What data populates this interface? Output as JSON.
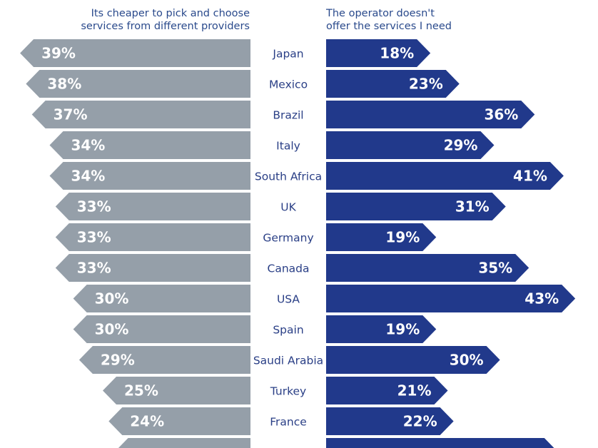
{
  "headers": {
    "left": [
      "Its cheaper to pick and choose",
      "services from different providers"
    ],
    "right": [
      "The operator doesn't",
      "offer the services I need"
    ]
  },
  "colors": {
    "left_bar": "#959fa9",
    "right_bar": "#21398b",
    "left_header_text": "#2a4a8c",
    "right_header_text": "#2a4a8c",
    "country_text": "#2a3f86",
    "bar_label": "#ffffff",
    "background": "#ffffff"
  },
  "chart_data": {
    "type": "bar",
    "orientation": "horizontal-butterfly",
    "categories": [
      "Japan",
      "Mexico",
      "Brazil",
      "Italy",
      "South Africa",
      "UK",
      "Germany",
      "Canada",
      "USA",
      "Spain",
      "Saudi Arabia",
      "Turkey",
      "France",
      ""
    ],
    "series": [
      {
        "name": "Its cheaper to pick and choose services from different providers",
        "values": [
          39,
          38,
          37,
          34,
          34,
          33,
          33,
          33,
          30,
          30,
          29,
          25,
          24,
          23
        ],
        "labels": [
          "39%",
          "38%",
          "37%",
          "34%",
          "34%",
          "33%",
          "33%",
          "33%",
          "30%",
          "30%",
          "29%",
          "25%",
          "24%",
          ""
        ]
      },
      {
        "name": "The operator doesn't offer the services I need",
        "values": [
          18,
          23,
          36,
          29,
          41,
          31,
          19,
          35,
          43,
          19,
          30,
          21,
          22,
          40
        ],
        "labels": [
          "18%",
          "23%",
          "36%",
          "29%",
          "41%",
          "31%",
          "19%",
          "35%",
          "43%",
          "19%",
          "30%",
          "21%",
          "22%",
          ""
        ]
      }
    ],
    "xlim": [
      0,
      45
    ]
  }
}
